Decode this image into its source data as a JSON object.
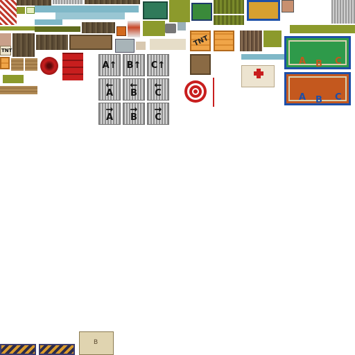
{
  "atlas": {
    "signs": [
      {
        "text": "A↑"
      },
      {
        "text": "B↑"
      },
      {
        "text": "C↑"
      },
      {
        "text": "←\nA"
      },
      {
        "text": "←\nB"
      },
      {
        "text": "←\nC"
      },
      {
        "text": "→\nA"
      },
      {
        "text": "→\nB"
      },
      {
        "text": "→\nC"
      }
    ],
    "tnt_labels": [
      "TNT",
      "TNT"
    ],
    "board_letters": {
      "green": [
        "A",
        "B",
        "C"
      ],
      "orange": [
        "A",
        "B",
        "C"
      ]
    },
    "map_letter": "B",
    "colors": {
      "board_green": "#2e9a4a",
      "board_orange": "#c4581e",
      "board_frame": "#1d4fa8",
      "medkit_cross": "#c81e1e",
      "target_red": "#c81e1e"
    }
  }
}
